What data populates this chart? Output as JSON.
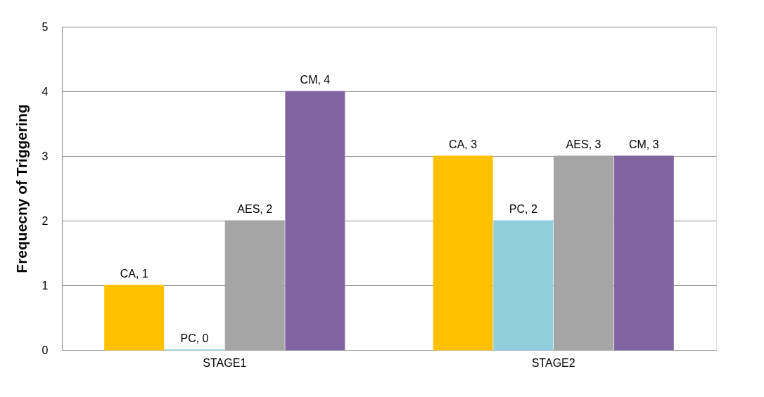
{
  "chart_data": {
    "type": "bar",
    "ylabel": "Frequecny of Triggering",
    "categories": [
      "STAGE1",
      "STAGE2"
    ],
    "series": [
      {
        "color": "#ffc000",
        "values": [
          1,
          3
        ],
        "value_labels": [
          "CA, 1",
          "CA, 3"
        ]
      },
      {
        "color": "#92cddc",
        "values": [
          0,
          2
        ],
        "value_labels": [
          "PC, 0",
          "PC, 2"
        ]
      },
      {
        "color": "#a5a5a5",
        "values": [
          2,
          3
        ],
        "value_labels": [
          "AES, 2",
          "AES, 3"
        ]
      },
      {
        "color": "#8064a2",
        "values": [
          4,
          3
        ],
        "value_labels": [
          "CM, 4",
          "CM, 3"
        ]
      }
    ],
    "ylim": [
      0,
      5
    ],
    "yticks": [
      0,
      1,
      2,
      3,
      4,
      5
    ],
    "grid": "y",
    "legend": false
  }
}
